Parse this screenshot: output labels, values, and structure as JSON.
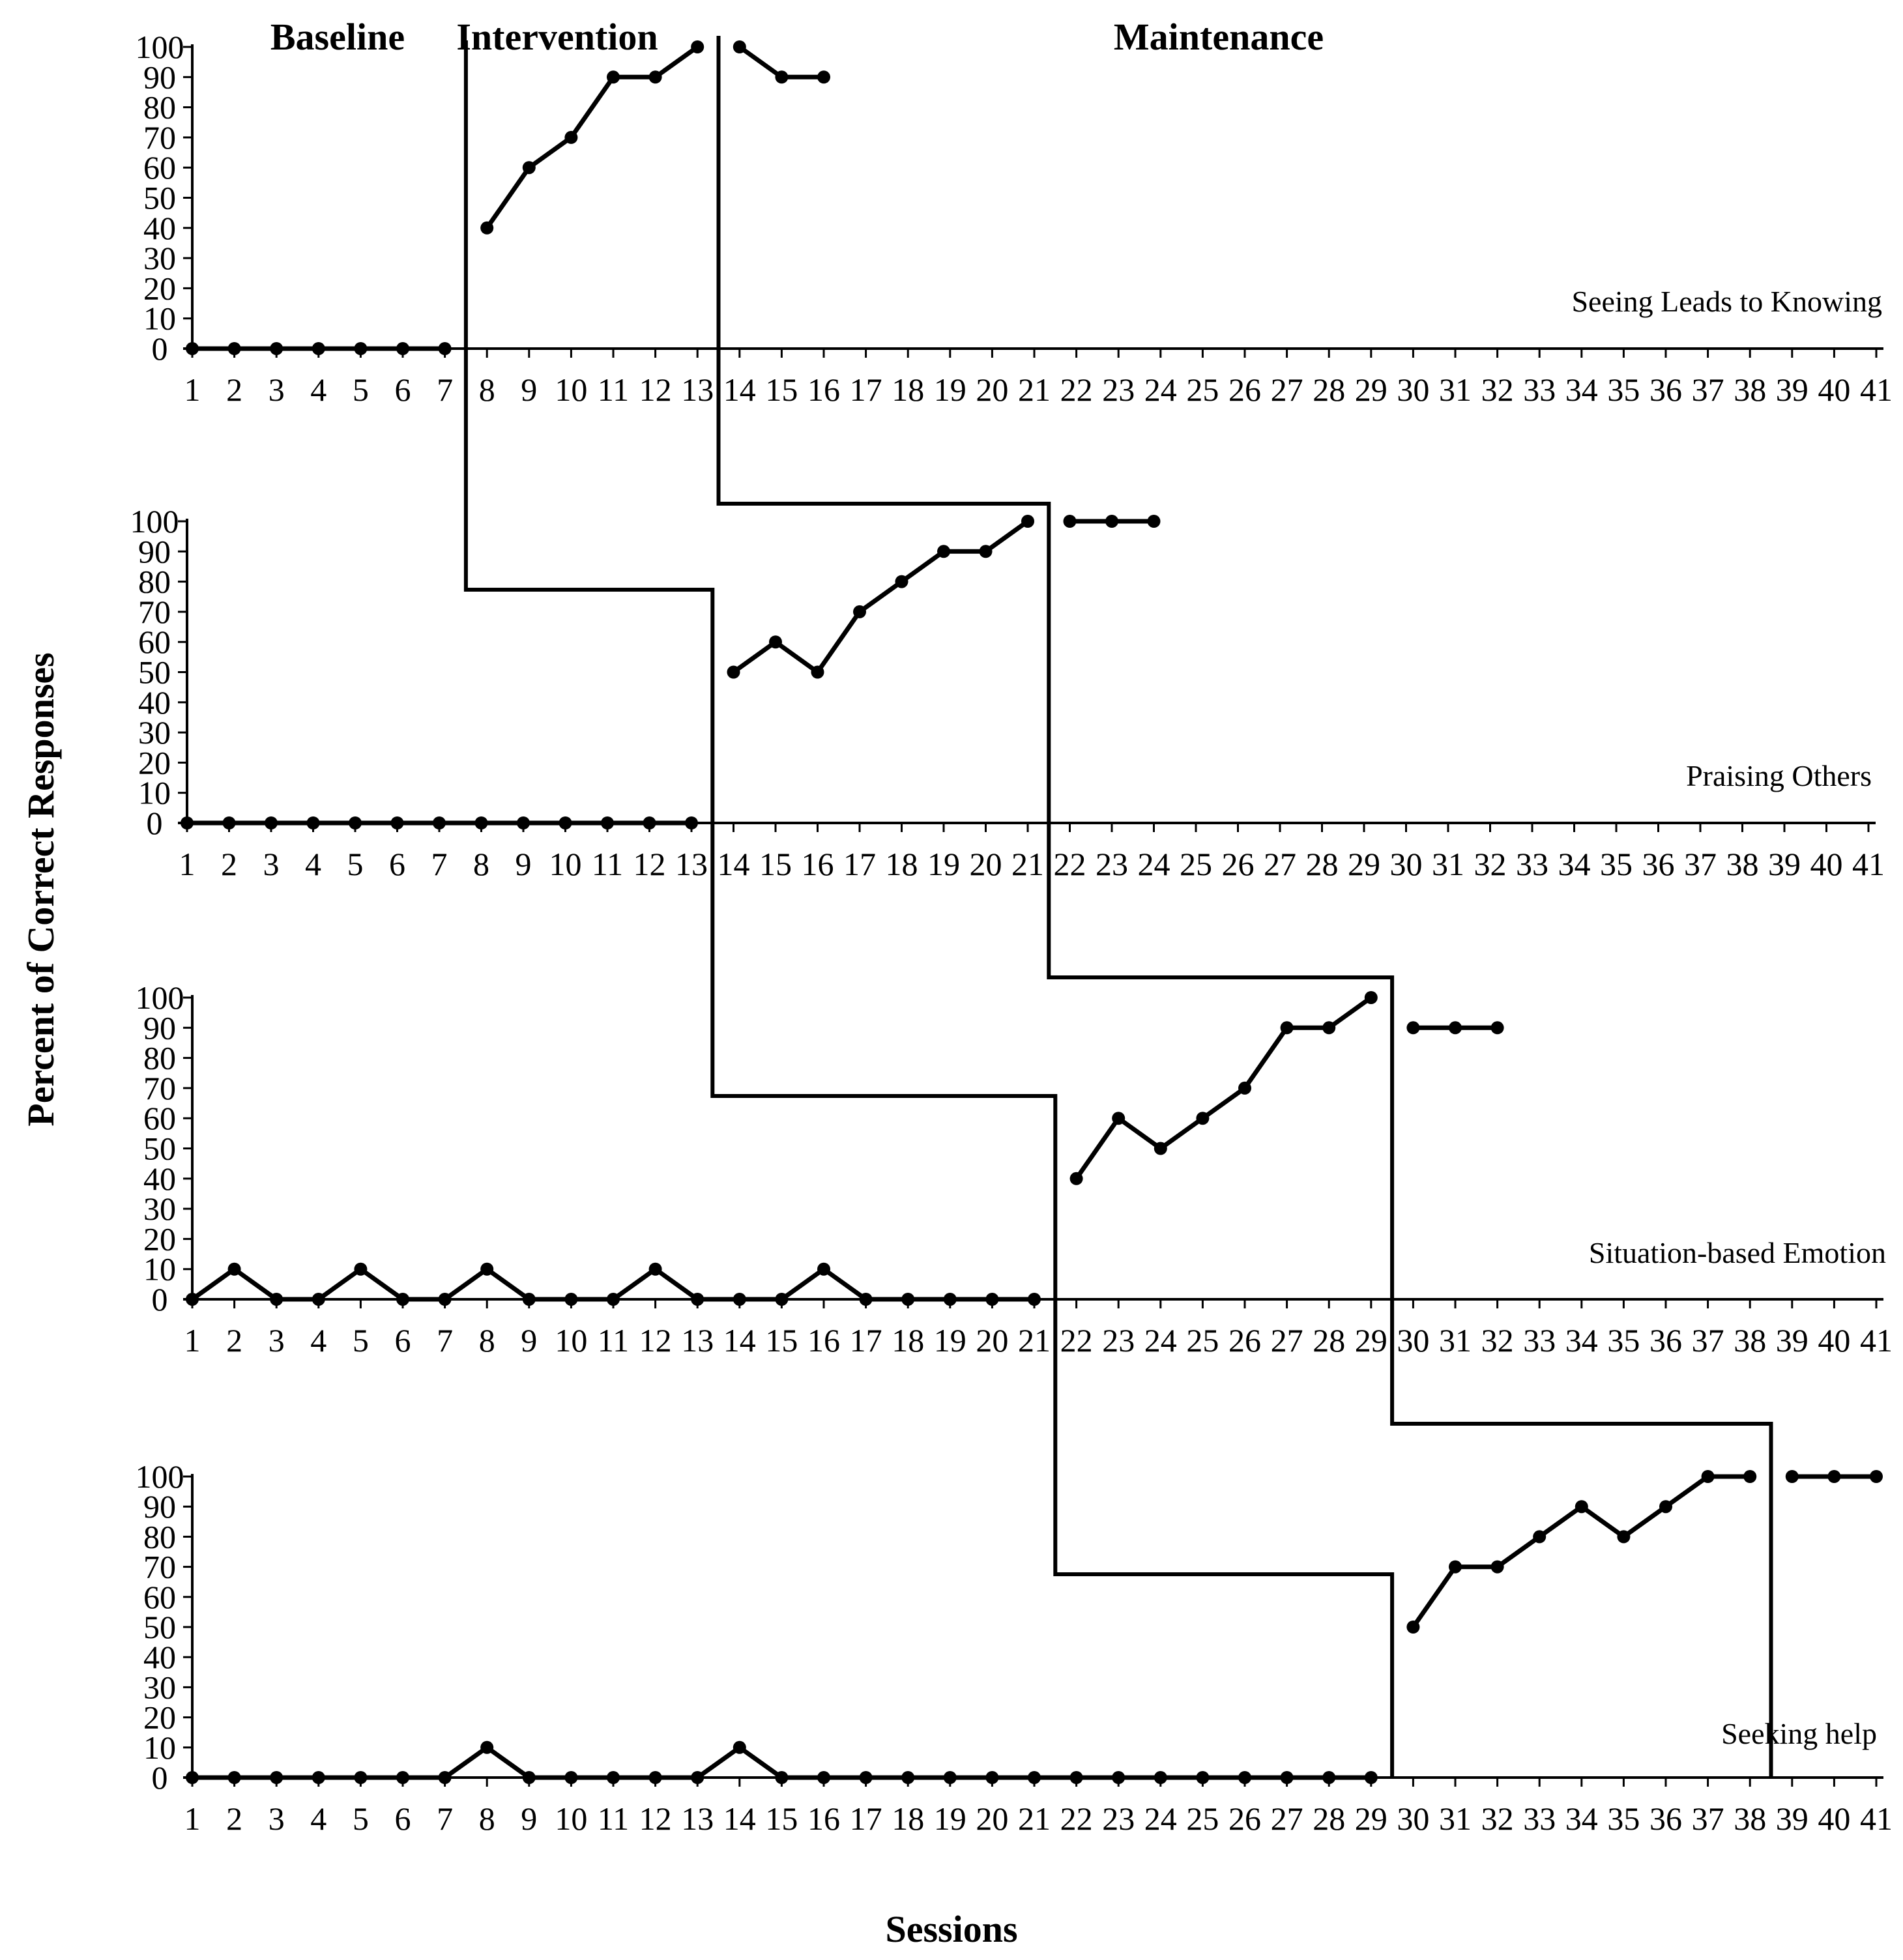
{
  "chart_data": {
    "type": "line",
    "design": "multiple-baseline across behaviors",
    "phases": [
      "Baseline",
      "Intervention",
      "Maintenance"
    ],
    "xlabel": "Sessions",
    "ylabel": "Percent of Correct Responses",
    "x": [
      1,
      2,
      3,
      4,
      5,
      6,
      7,
      8,
      9,
      10,
      11,
      12,
      13,
      14,
      15,
      16,
      17,
      18,
      19,
      20,
      21,
      22,
      23,
      24,
      25,
      26,
      27,
      28,
      29,
      30,
      31,
      32,
      33,
      34,
      35,
      36,
      37,
      38,
      39,
      40,
      41
    ],
    "xlim": [
      1,
      41
    ],
    "ylim": [
      0,
      100
    ],
    "yticks": [
      0,
      10,
      20,
      30,
      40,
      50,
      60,
      70,
      80,
      90,
      100
    ],
    "panels": [
      {
        "label": "Seeing Leads to Knowing",
        "phase_changes_after_session": [
          7,
          13
        ],
        "series": [
          {
            "phase": "Baseline",
            "x": [
              1,
              2,
              3,
              4,
              5,
              6,
              7
            ],
            "values": [
              0,
              0,
              0,
              0,
              0,
              0,
              0
            ]
          },
          {
            "phase": "Intervention",
            "x": [
              8,
              9,
              10,
              11,
              12,
              13
            ],
            "values": [
              40,
              60,
              70,
              90,
              90,
              100
            ]
          },
          {
            "phase": "Maintenance",
            "x": [
              14,
              15,
              16
            ],
            "values": [
              100,
              90,
              90
            ]
          }
        ]
      },
      {
        "label": "Praising Others",
        "phase_changes_after_session": [
          13,
          21
        ],
        "series": [
          {
            "phase": "Baseline",
            "x": [
              1,
              2,
              3,
              4,
              5,
              6,
              7,
              8,
              9,
              10,
              11,
              12,
              13
            ],
            "values": [
              0,
              0,
              0,
              0,
              0,
              0,
              0,
              0,
              0,
              0,
              0,
              0,
              0
            ]
          },
          {
            "phase": "Intervention",
            "x": [
              14,
              15,
              16,
              17,
              18,
              19,
              20,
              21
            ],
            "values": [
              50,
              60,
              50,
              70,
              80,
              90,
              90,
              100
            ]
          },
          {
            "phase": "Maintenance",
            "x": [
              22,
              23,
              24
            ],
            "values": [
              100,
              100,
              100
            ]
          }
        ]
      },
      {
        "label": "Situation-based Emotion",
        "phase_changes_after_session": [
          21,
          29
        ],
        "series": [
          {
            "phase": "Baseline",
            "x": [
              1,
              2,
              3,
              4,
              5,
              6,
              7,
              8,
              9,
              10,
              11,
              12,
              13,
              14,
              15,
              16,
              17,
              18,
              19,
              20,
              21
            ],
            "values": [
              0,
              10,
              0,
              0,
              10,
              0,
              0,
              10,
              0,
              0,
              0,
              10,
              0,
              0,
              0,
              10,
              0,
              0,
              0,
              0,
              0
            ]
          },
          {
            "phase": "Intervention",
            "x": [
              22,
              23,
              24,
              25,
              26,
              27,
              28,
              29
            ],
            "values": [
              40,
              60,
              50,
              60,
              70,
              90,
              90,
              100
            ]
          },
          {
            "phase": "Maintenance",
            "x": [
              30,
              31,
              32
            ],
            "values": [
              90,
              90,
              90
            ]
          }
        ]
      },
      {
        "label": "Seeking help",
        "phase_changes_after_session": [
          29,
          38
        ],
        "series": [
          {
            "phase": "Baseline",
            "x": [
              1,
              2,
              3,
              4,
              5,
              6,
              7,
              8,
              9,
              10,
              11,
              12,
              13,
              14,
              15,
              16,
              17,
              18,
              19,
              20,
              21,
              22,
              23,
              24,
              25,
              26,
              27,
              28,
              29
            ],
            "values": [
              0,
              0,
              0,
              0,
              0,
              0,
              0,
              10,
              0,
              0,
              0,
              0,
              0,
              10,
              0,
              0,
              0,
              0,
              0,
              0,
              0,
              0,
              0,
              0,
              0,
              0,
              0,
              0,
              0
            ]
          },
          {
            "phase": "Intervention",
            "x": [
              30,
              31,
              32,
              33,
              34,
              35,
              36,
              37,
              38
            ],
            "values": [
              50,
              70,
              70,
              80,
              90,
              80,
              90,
              100,
              100
            ]
          },
          {
            "phase": "Maintenance",
            "x": [
              39,
              40,
              41
            ],
            "values": [
              100,
              100,
              100
            ]
          }
        ]
      }
    ]
  },
  "colors": {
    "ink": "#000000",
    "background": "#ffffff"
  }
}
